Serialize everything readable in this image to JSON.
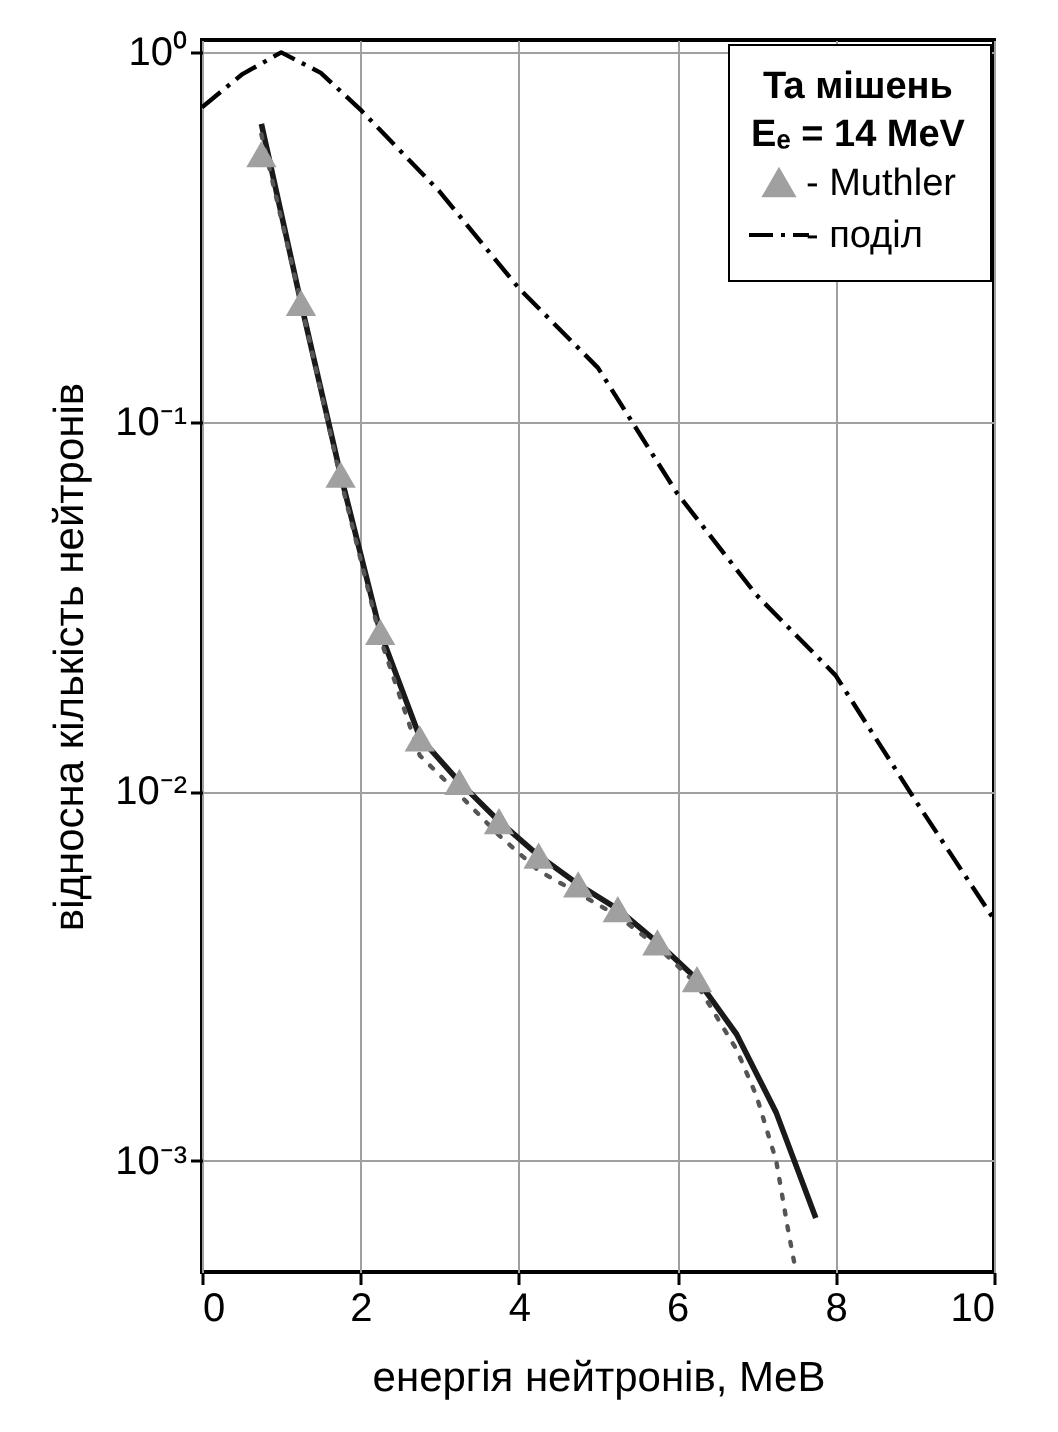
{
  "chart_data": {
    "type": "line",
    "xlabel": "енергія нейтронів, MeB",
    "ylabel": "відносна кількість нейтронів",
    "legend_title": "Ta мішень",
    "annotations": [
      "Eₑ = 14 MeV"
    ],
    "xlim": [
      0,
      10
    ],
    "xticks": [
      0,
      2,
      4,
      6,
      8,
      10
    ],
    "ylim": [
      0.0005,
      1.08
    ],
    "log": "y",
    "yticks": [
      {
        "value": 1,
        "label": "10⁰"
      },
      {
        "value": 0.1,
        "label": "10⁻¹"
      },
      {
        "value": 0.01,
        "label": "10⁻²"
      },
      {
        "value": 0.001,
        "label": "10⁻³"
      }
    ],
    "grid": true,
    "legend": "top right",
    "series": [
      {
        "color": "#1a1a1a",
        "line_style": "solid",
        "x": [
          0.75,
          1.25,
          1.75,
          2.25,
          2.75,
          3.25,
          3.75,
          4.25,
          4.75,
          5.25,
          5.75,
          6.25,
          6.75,
          7.25,
          7.75
        ],
        "values": [
          0.64,
          0.21,
          0.072,
          0.027,
          0.014,
          0.0106,
          0.0083,
          0.0067,
          0.0056,
          0.0048,
          0.0039,
          0.0031,
          0.0022,
          0.00135,
          0.0007
        ]
      },
      {
        "color": "#555555",
        "line_style": "dotted",
        "x": [
          0.75,
          1.25,
          1.75,
          2.25,
          2.75,
          3.25,
          3.75,
          4.25,
          4.75,
          5.25,
          5.75,
          6.25,
          6.75,
          7.0,
          7.25,
          7.4,
          7.5
        ],
        "values": [
          0.6,
          0.21,
          0.07,
          0.026,
          0.0125,
          0.0098,
          0.0076,
          0.0061,
          0.0053,
          0.0046,
          0.0038,
          0.003,
          0.002,
          0.0015,
          0.001,
          0.00065,
          0.0005
        ]
      },
      {
        "type": "scatter",
        "name": "- Muthler",
        "color": "#a0a0a0",
        "marker": "triangle",
        "x": [
          0.75,
          1.25,
          1.75,
          2.25,
          2.75,
          3.25,
          3.75,
          4.25,
          4.75,
          5.25,
          5.75,
          6.25
        ],
        "values": [
          0.53,
          0.21,
          0.072,
          0.027,
          0.0139,
          0.0106,
          0.0083,
          0.0067,
          0.0056,
          0.0048,
          0.0039,
          0.0031
        ]
      },
      {
        "name": "- поділ",
        "color": "#000000",
        "line_style": "dashdot",
        "x": [
          0,
          0.5,
          1,
          1.5,
          2,
          3,
          4,
          5,
          6,
          7,
          8,
          9,
          10
        ],
        "values": [
          0.71,
          0.87,
          1.0,
          0.88,
          0.7,
          0.42,
          0.23,
          0.14,
          0.064,
          0.034,
          0.0206,
          0.0095,
          0.0045
        ]
      }
    ]
  }
}
